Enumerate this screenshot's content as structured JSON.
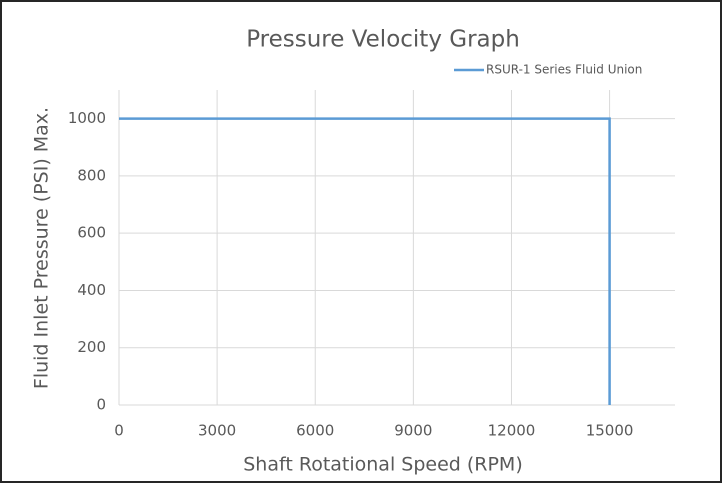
{
  "chart_data": {
    "type": "line",
    "title": "Pressure Velocity Graph",
    "x_label": "Shaft Rotational Speed (RPM)",
    "y_label": "Fluid Inlet Pressure (PSI) Max.",
    "series": [
      {
        "name": "RSUR-1 Series Fluid Union",
        "color": "#5b9bd5",
        "x": [
          0,
          15000,
          15000
        ],
        "values": [
          1000,
          1000,
          0
        ]
      }
    ],
    "xlim": [
      0,
      17000
    ],
    "xticks": [
      0,
      3000,
      6000,
      9000,
      12000,
      15000
    ],
    "ylim": [
      0,
      1100
    ],
    "yticks": [
      0,
      200,
      400,
      600,
      800,
      1000
    ],
    "grid": true,
    "legend": "top-right"
  }
}
